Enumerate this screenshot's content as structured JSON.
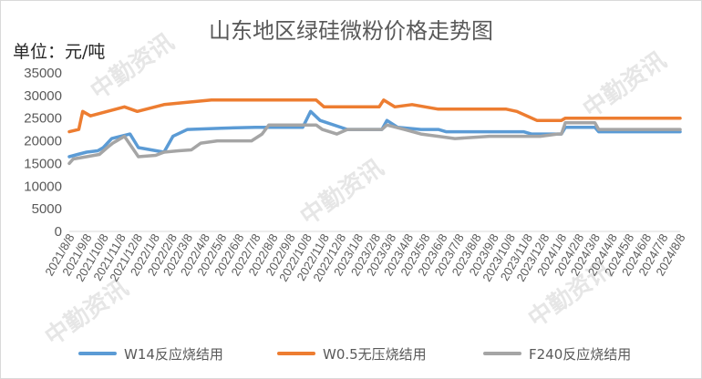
{
  "page": {
    "title": "山东地区绿硅微粉价格走势图",
    "unit_label": "单位：元/吨"
  },
  "watermark": {
    "text": "中勤资讯",
    "color": "#e6e6e6"
  },
  "chart_data": {
    "type": "line",
    "title": "山东地区绿硅微粉价格走势图",
    "ylabel": "单位：元/吨",
    "ylim": [
      0,
      35000
    ],
    "yticks": [
      0,
      5000,
      10000,
      15000,
      20000,
      25000,
      30000,
      35000
    ],
    "ytick_labels": [
      "0",
      "5000",
      "10000",
      "15000",
      "20000",
      "25000",
      "30000",
      "35000"
    ],
    "x_tick_labels": [
      "2021/8/8",
      "2021/9/8",
      "2021/10/8",
      "2021/11/8",
      "2021/12/8",
      "2022/1/8",
      "2022/2/8",
      "2022/3/8",
      "2022/4/8",
      "2022/5/8",
      "2022/6/8",
      "2022/7/8",
      "2022/8/8",
      "2022/9/8",
      "2022/10/8",
      "2022/11/8",
      "2022/12/8",
      "2023/1/8",
      "2023/2/8",
      "2023/3/8",
      "2023/4/8",
      "2023/5/8",
      "2023/6/8",
      "2023/7/8",
      "2023/8/8",
      "2023/9/8",
      "2023/10/8",
      "2023/11/8",
      "2023/12/8",
      "2024/1/8",
      "2024/2/8",
      "2024/3/8",
      "2024/4/8",
      "2024/5/8",
      "2024/6/8",
      "2024/7/8",
      "2024/8/8"
    ],
    "grid": false,
    "legend": "bottom",
    "series": [
      {
        "name": "W14反应烧结用",
        "color": "#5b9bd5",
        "points": [
          [
            "2021-08-08",
            16500
          ],
          [
            "2021-08-23",
            17000
          ],
          [
            "2021-09-08",
            17500
          ],
          [
            "2021-09-28",
            17800
          ],
          [
            "2021-10-08",
            18500
          ],
          [
            "2021-10-23",
            20500
          ],
          [
            "2021-11-25",
            21500
          ],
          [
            "2021-12-10",
            18500
          ],
          [
            "2022-01-25",
            17500
          ],
          [
            "2022-02-10",
            21000
          ],
          [
            "2022-03-08",
            22500
          ],
          [
            "2022-05-08",
            22800
          ],
          [
            "2022-07-08",
            23000
          ],
          [
            "2022-10-01",
            23000
          ],
          [
            "2022-10-15",
            26500
          ],
          [
            "2022-11-01",
            24500
          ],
          [
            "2022-12-20",
            22500
          ],
          [
            "2023-02-20",
            22500
          ],
          [
            "2023-03-01",
            24500
          ],
          [
            "2023-03-20",
            23000
          ],
          [
            "2023-05-01",
            22500
          ],
          [
            "2023-06-01",
            22500
          ],
          [
            "2023-06-15",
            22000
          ],
          [
            "2023-11-01",
            22000
          ],
          [
            "2023-11-15",
            21500
          ],
          [
            "2024-01-08",
            21500
          ],
          [
            "2024-01-15",
            23000
          ],
          [
            "2024-03-08",
            23000
          ],
          [
            "2024-03-15",
            22000
          ],
          [
            "2024-08-08",
            22000
          ]
        ]
      },
      {
        "name": "W0.5无压烧结用",
        "color": "#ed7d31",
        "points": [
          [
            "2021-08-08",
            22000
          ],
          [
            "2021-08-25",
            22500
          ],
          [
            "2021-09-01",
            26500
          ],
          [
            "2021-09-15",
            25500
          ],
          [
            "2021-10-15",
            26500
          ],
          [
            "2021-11-15",
            27500
          ],
          [
            "2021-12-08",
            26500
          ],
          [
            "2022-01-25",
            28000
          ],
          [
            "2022-03-08",
            28500
          ],
          [
            "2022-04-20",
            29000
          ],
          [
            "2022-10-25",
            29000
          ],
          [
            "2022-11-08",
            27500
          ],
          [
            "2023-02-15",
            27500
          ],
          [
            "2023-02-23",
            29000
          ],
          [
            "2023-03-15",
            27500
          ],
          [
            "2023-04-15",
            28000
          ],
          [
            "2023-06-01",
            27000
          ],
          [
            "2023-10-01",
            27000
          ],
          [
            "2023-10-20",
            26500
          ],
          [
            "2023-11-25",
            24500
          ],
          [
            "2024-01-08",
            24500
          ],
          [
            "2024-01-15",
            25000
          ],
          [
            "2024-08-08",
            25000
          ]
        ]
      },
      {
        "name": "F240反应烧结用",
        "color": "#a5a5a5",
        "points": [
          [
            "2021-08-08",
            15000
          ],
          [
            "2021-08-15",
            16000
          ],
          [
            "2021-09-08",
            16500
          ],
          [
            "2021-10-01",
            17000
          ],
          [
            "2021-10-15",
            18500
          ],
          [
            "2021-10-25",
            19500
          ],
          [
            "2021-11-15",
            21000
          ],
          [
            "2021-12-10",
            16500
          ],
          [
            "2022-01-10",
            16800
          ],
          [
            "2022-01-25",
            17500
          ],
          [
            "2022-02-20",
            17800
          ],
          [
            "2022-03-15",
            18000
          ],
          [
            "2022-04-01",
            19500
          ],
          [
            "2022-05-01",
            20000
          ],
          [
            "2022-07-01",
            20000
          ],
          [
            "2022-07-20",
            21500
          ],
          [
            "2022-08-01",
            23500
          ],
          [
            "2022-10-25",
            23500
          ],
          [
            "2022-11-05",
            22500
          ],
          [
            "2022-12-01",
            21500
          ],
          [
            "2022-12-20",
            22500
          ],
          [
            "2023-02-20",
            22500
          ],
          [
            "2023-03-01",
            23500
          ],
          [
            "2023-04-01",
            22500
          ],
          [
            "2023-05-01",
            21500
          ],
          [
            "2023-06-01",
            21000
          ],
          [
            "2023-07-01",
            20500
          ],
          [
            "2023-09-01",
            21000
          ],
          [
            "2023-12-01",
            21000
          ],
          [
            "2024-01-01",
            21500
          ],
          [
            "2024-01-08",
            21500
          ],
          [
            "2024-01-15",
            24000
          ],
          [
            "2024-03-08",
            24000
          ],
          [
            "2024-03-15",
            22500
          ],
          [
            "2024-08-08",
            22500
          ]
        ]
      }
    ]
  }
}
